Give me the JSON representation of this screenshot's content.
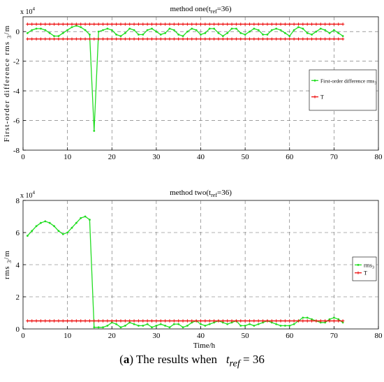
{
  "figure_caption": {
    "label": "a",
    "text_before": "The results when",
    "symbol": "t",
    "subscript": "ref",
    "text_after": "= 36"
  },
  "chart_data": [
    {
      "type": "line",
      "title": "method one(t",
      "title_sub": "ref",
      "title_tail": "=36)",
      "ylabel": "First-order difference rms",
      "ylabel_sub": "3",
      "ylabel_unit": "/m",
      "xlabel": "",
      "exponent_label": "x 10",
      "exponent_power": "4",
      "xlim": [
        0,
        80
      ],
      "ylim": [
        -8,
        1
      ],
      "x_ticks": [
        0,
        10,
        20,
        30,
        40,
        50,
        60,
        70,
        80
      ],
      "y_ticks": [
        -8,
        -6,
        -4,
        -2,
        0
      ],
      "grid": true,
      "legend_position": "right",
      "series": [
        {
          "name": "First-order difference rms",
          "name_sub": "3",
          "color": "#22dd22",
          "marker": "dot",
          "x": [
            1,
            2,
            3,
            4,
            5,
            6,
            7,
            8,
            9,
            10,
            11,
            12,
            13,
            14,
            15,
            16,
            17,
            18,
            19,
            20,
            21,
            22,
            23,
            24,
            25,
            26,
            27,
            28,
            29,
            30,
            31,
            32,
            33,
            34,
            35,
            36,
            37,
            38,
            39,
            40,
            41,
            42,
            43,
            44,
            45,
            46,
            47,
            48,
            49,
            50,
            51,
            52,
            53,
            54,
            55,
            56,
            57,
            58,
            59,
            60,
            61,
            62,
            63,
            64,
            65,
            66,
            67,
            68,
            69,
            70,
            71,
            72
          ],
          "values": [
            -0.1,
            0.1,
            0.2,
            0.2,
            0.1,
            -0.1,
            -0.3,
            -0.3,
            -0.1,
            0.1,
            0.3,
            0.4,
            0.3,
            0.1,
            -0.2,
            -6.7,
            0.0,
            0.1,
            0.2,
            0.1,
            -0.2,
            -0.3,
            -0.1,
            0.2,
            0.1,
            -0.2,
            -0.2,
            0.1,
            0.2,
            0.0,
            -0.2,
            -0.1,
            0.2,
            0.1,
            -0.2,
            -0.3,
            0.0,
            0.2,
            0.1,
            -0.2,
            -0.1,
            0.2,
            0.2,
            -0.1,
            -0.3,
            -0.1,
            0.2,
            0.2,
            -0.1,
            -0.2,
            0.0,
            0.2,
            0.1,
            -0.2,
            -0.2,
            0.1,
            0.2,
            0.1,
            -0.1,
            -0.3,
            0.1,
            0.3,
            0.2,
            -0.1,
            -0.2,
            0.0,
            0.2,
            0.1,
            -0.1,
            0.1,
            -0.1,
            -0.3
          ]
        },
        {
          "name": "T",
          "name_sub": "",
          "color": "#ee1111",
          "marker": "plus",
          "x": [
            1,
            2,
            3,
            4,
            5,
            6,
            7,
            8,
            9,
            10,
            11,
            12,
            13,
            14,
            15,
            16,
            17,
            18,
            19,
            20,
            21,
            22,
            23,
            24,
            25,
            26,
            27,
            28,
            29,
            30,
            31,
            32,
            33,
            34,
            35,
            36,
            37,
            38,
            39,
            40,
            41,
            42,
            43,
            44,
            45,
            46,
            47,
            48,
            49,
            50,
            51,
            52,
            53,
            54,
            55,
            56,
            57,
            58,
            59,
            60,
            61,
            62,
            63,
            64,
            65,
            66,
            67,
            68,
            69,
            70,
            71,
            72
          ],
          "values": [
            0.5,
            0.5,
            0.5,
            0.5,
            0.5,
            0.5,
            0.5,
            0.5,
            0.5,
            0.5,
            0.5,
            0.5,
            0.5,
            0.5,
            0.5,
            0.5,
            0.5,
            0.5,
            0.5,
            0.5,
            0.5,
            0.5,
            0.5,
            0.5,
            0.5,
            0.5,
            0.5,
            0.5,
            0.5,
            0.5,
            0.5,
            0.5,
            0.5,
            0.5,
            0.5,
            0.5,
            0.5,
            0.5,
            0.5,
            0.5,
            0.5,
            0.5,
            0.5,
            0.5,
            0.5,
            0.5,
            0.5,
            0.5,
            0.5,
            0.5,
            0.5,
            0.5,
            0.5,
            0.5,
            0.5,
            0.5,
            0.5,
            0.5,
            0.5,
            0.5,
            0.5,
            0.5,
            0.5,
            0.5,
            0.5,
            0.5,
            0.5,
            0.5,
            0.5,
            0.5,
            0.5,
            0.5
          ]
        },
        {
          "name": "",
          "name_sub": "",
          "color": "#ee1111",
          "marker": "plus",
          "x": [
            1,
            2,
            3,
            4,
            5,
            6,
            7,
            8,
            9,
            10,
            11,
            12,
            13,
            14,
            15,
            16,
            17,
            18,
            19,
            20,
            21,
            22,
            23,
            24,
            25,
            26,
            27,
            28,
            29,
            30,
            31,
            32,
            33,
            34,
            35,
            36,
            37,
            38,
            39,
            40,
            41,
            42,
            43,
            44,
            45,
            46,
            47,
            48,
            49,
            50,
            51,
            52,
            53,
            54,
            55,
            56,
            57,
            58,
            59,
            60,
            61,
            62,
            63,
            64,
            65,
            66,
            67,
            68,
            69,
            70,
            71,
            72
          ],
          "values": [
            -0.5,
            -0.5,
            -0.5,
            -0.5,
            -0.5,
            -0.5,
            -0.5,
            -0.5,
            -0.5,
            -0.5,
            -0.5,
            -0.5,
            -0.5,
            -0.5,
            -0.5,
            -0.5,
            -0.5,
            -0.5,
            -0.5,
            -0.5,
            -0.5,
            -0.5,
            -0.5,
            -0.5,
            -0.5,
            -0.5,
            -0.5,
            -0.5,
            -0.5,
            -0.5,
            -0.5,
            -0.5,
            -0.5,
            -0.5,
            -0.5,
            -0.5,
            -0.5,
            -0.5,
            -0.5,
            -0.5,
            -0.5,
            -0.5,
            -0.5,
            -0.5,
            -0.5,
            -0.5,
            -0.5,
            -0.5,
            -0.5,
            -0.5,
            -0.5,
            -0.5,
            -0.5,
            -0.5,
            -0.5,
            -0.5,
            -0.5,
            -0.5,
            -0.5,
            -0.5,
            -0.5,
            -0.5,
            -0.5,
            -0.5,
            -0.5,
            -0.5,
            -0.5,
            -0.5,
            -0.5,
            -0.5,
            -0.5,
            -0.5
          ]
        }
      ]
    },
    {
      "type": "line",
      "title": "method two(t",
      "title_sub": "ref",
      "title_tail": "=36)",
      "ylabel": "rms",
      "ylabel_sub": "3",
      "ylabel_unit": "/m",
      "xlabel": "Time/h",
      "exponent_label": "x 10",
      "exponent_power": "4",
      "xlim": [
        0,
        80
      ],
      "ylim": [
        0,
        8
      ],
      "x_ticks": [
        0,
        10,
        20,
        30,
        40,
        50,
        60,
        70,
        80
      ],
      "y_ticks": [
        0,
        2,
        4,
        6,
        8
      ],
      "grid": true,
      "legend_position": "right",
      "series": [
        {
          "name": "rms",
          "name_sub": "3",
          "color": "#22dd22",
          "marker": "dot",
          "x": [
            1,
            2,
            3,
            4,
            5,
            6,
            7,
            8,
            9,
            10,
            11,
            12,
            13,
            14,
            15,
            16,
            17,
            18,
            19,
            20,
            21,
            22,
            23,
            24,
            25,
            26,
            27,
            28,
            29,
            30,
            31,
            32,
            33,
            34,
            35,
            36,
            37,
            38,
            39,
            40,
            41,
            42,
            43,
            44,
            45,
            46,
            47,
            48,
            49,
            50,
            51,
            52,
            53,
            54,
            55,
            56,
            57,
            58,
            59,
            60,
            61,
            62,
            63,
            64,
            65,
            66,
            67,
            68,
            69,
            70,
            71,
            72
          ],
          "values": [
            5.8,
            6.1,
            6.4,
            6.6,
            6.7,
            6.6,
            6.4,
            6.1,
            5.9,
            6.0,
            6.3,
            6.6,
            6.9,
            7.0,
            6.8,
            0.1,
            0.1,
            0.1,
            0.2,
            0.4,
            0.3,
            0.1,
            0.2,
            0.4,
            0.3,
            0.2,
            0.2,
            0.3,
            0.1,
            0.2,
            0.3,
            0.2,
            0.1,
            0.3,
            0.3,
            0.1,
            0.2,
            0.4,
            0.5,
            0.3,
            0.2,
            0.3,
            0.4,
            0.5,
            0.4,
            0.3,
            0.4,
            0.5,
            0.2,
            0.2,
            0.3,
            0.2,
            0.3,
            0.4,
            0.5,
            0.4,
            0.3,
            0.2,
            0.2,
            0.2,
            0.3,
            0.5,
            0.7,
            0.7,
            0.6,
            0.5,
            0.4,
            0.4,
            0.6,
            0.7,
            0.6,
            0.4
          ]
        },
        {
          "name": "T",
          "name_sub": "",
          "color": "#ee1111",
          "marker": "plus",
          "x": [
            1,
            2,
            3,
            4,
            5,
            6,
            7,
            8,
            9,
            10,
            11,
            12,
            13,
            14,
            15,
            16,
            17,
            18,
            19,
            20,
            21,
            22,
            23,
            24,
            25,
            26,
            27,
            28,
            29,
            30,
            31,
            32,
            33,
            34,
            35,
            36,
            37,
            38,
            39,
            40,
            41,
            42,
            43,
            44,
            45,
            46,
            47,
            48,
            49,
            50,
            51,
            52,
            53,
            54,
            55,
            56,
            57,
            58,
            59,
            60,
            61,
            62,
            63,
            64,
            65,
            66,
            67,
            68,
            69,
            70,
            71,
            72
          ],
          "values": [
            0.5,
            0.5,
            0.5,
            0.5,
            0.5,
            0.5,
            0.5,
            0.5,
            0.5,
            0.5,
            0.5,
            0.5,
            0.5,
            0.5,
            0.5,
            0.5,
            0.5,
            0.5,
            0.5,
            0.5,
            0.5,
            0.5,
            0.5,
            0.5,
            0.5,
            0.5,
            0.5,
            0.5,
            0.5,
            0.5,
            0.5,
            0.5,
            0.5,
            0.5,
            0.5,
            0.5,
            0.5,
            0.5,
            0.5,
            0.5,
            0.5,
            0.5,
            0.5,
            0.5,
            0.5,
            0.5,
            0.5,
            0.5,
            0.5,
            0.5,
            0.5,
            0.5,
            0.5,
            0.5,
            0.5,
            0.5,
            0.5,
            0.5,
            0.5,
            0.5,
            0.5,
            0.5,
            0.5,
            0.5,
            0.5,
            0.5,
            0.5,
            0.5,
            0.5,
            0.5,
            0.5,
            0.5
          ]
        }
      ]
    }
  ]
}
